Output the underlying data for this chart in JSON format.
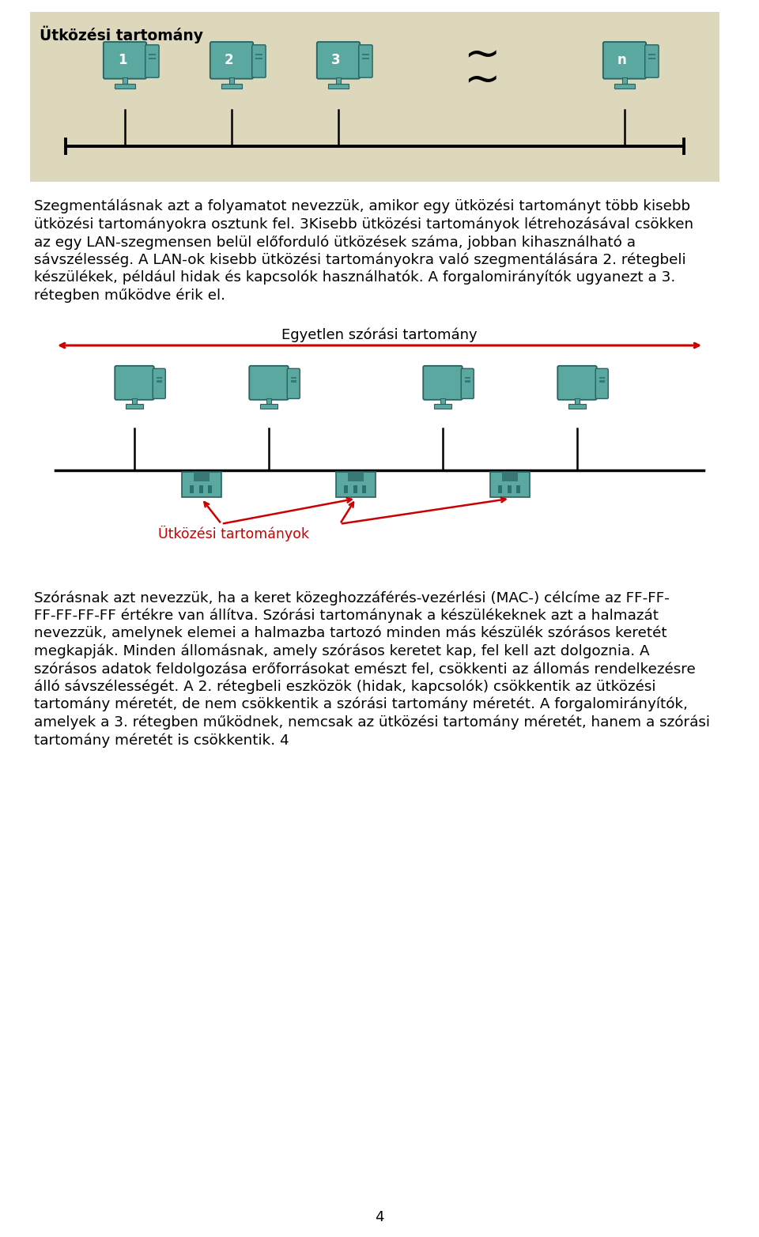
{
  "bg_color": "#ffffff",
  "diagram1_bg": "#ddd8bb",
  "page_number": "4",
  "diagram1_title": "Ütközési tartomány",
  "diagram1_labels": [
    "1",
    "2",
    "3",
    "n"
  ],
  "diagram2_broadcast_label": "Egyetlen szórási tartomány",
  "diagram2_collision_label": "Ütközési tartományok",
  "comp_color": "#5ba8a0",
  "comp_edge": "#2a6060",
  "red_color": "#cc0000",
  "black": "#000000",
  "para1_lines": [
    "Szegmentálásnak azt a folyamatot nevezzük, amikor egy ütközési tartományt több kisebb",
    "ütközési tartományokra osztunk fel. 3Kisebb ütközési tartományok létrehozásával csökken",
    "az egy LAN-szegmensen belül előforduló ütközések száma, jobban kihasználható a",
    "sávszélesség. A LAN-ok kisebb ütközési tartományokra való szegmentálására 2. rétegbeli",
    "készülékek, például hidak és kapcsolók használhatók. A forgalomirányítók ugyanezt a 3.",
    "rétegben működve érik el."
  ],
  "para2_lines": [
    "Szórásnak azt nevezzük, ha a keret közeghozzáférés-vezérlési (MAC-) célcíme az FF-FF-",
    "FF-FF-FF-FF értékre van állítva. Szórási tartománynak a készülékeknek azt a halmazát",
    "nevezzük, amelynek elemei a halmazba tartozó minden más készülék szórásos keretét",
    "megkapják. Minden állomásnak, amely szórásos keretet kap, fel kell azt dolgoznia. A",
    "szórásos adatok feldolgozása erőforrásokat emészt fel, csökkenti az állomás rendelkezésre",
    "álló sávszélességét. A 2. rétegbeli eszközök (hidak, kapcsolók) csökkentik az ütközési",
    "tartomány méretét, de nem csökkentik a szórási tartomány méretét. A forgalomirányítók,",
    "amelyek a 3. rétegben működnek, nemcsak az ütközési tartomány méretét, hanem a szórási",
    "tartomány méretét is csökkentik. 4"
  ]
}
